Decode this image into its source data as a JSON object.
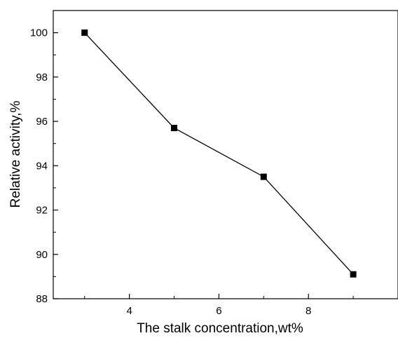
{
  "chart_data": {
    "type": "line",
    "xlabel": "The stalk concentration,wt%",
    "ylabel": "Relative activity,%",
    "xlim": [
      2.3,
      10
    ],
    "ylim": [
      88,
      101
    ],
    "x_ticks": [
      4,
      6,
      8
    ],
    "x_tick_labels": [
      "4",
      "6",
      "8"
    ],
    "y_ticks": [
      88,
      90,
      92,
      94,
      96,
      98,
      100
    ],
    "y_tick_labels": [
      "88",
      "90",
      "92",
      "94",
      "96",
      "98",
      "100"
    ],
    "grid": false,
    "legend": "none",
    "series": [
      {
        "x": [
          3,
          5,
          7,
          9
        ],
        "values": [
          100,
          95.7,
          93.5,
          89.1
        ],
        "marker": "square",
        "color": "#000000"
      }
    ]
  }
}
